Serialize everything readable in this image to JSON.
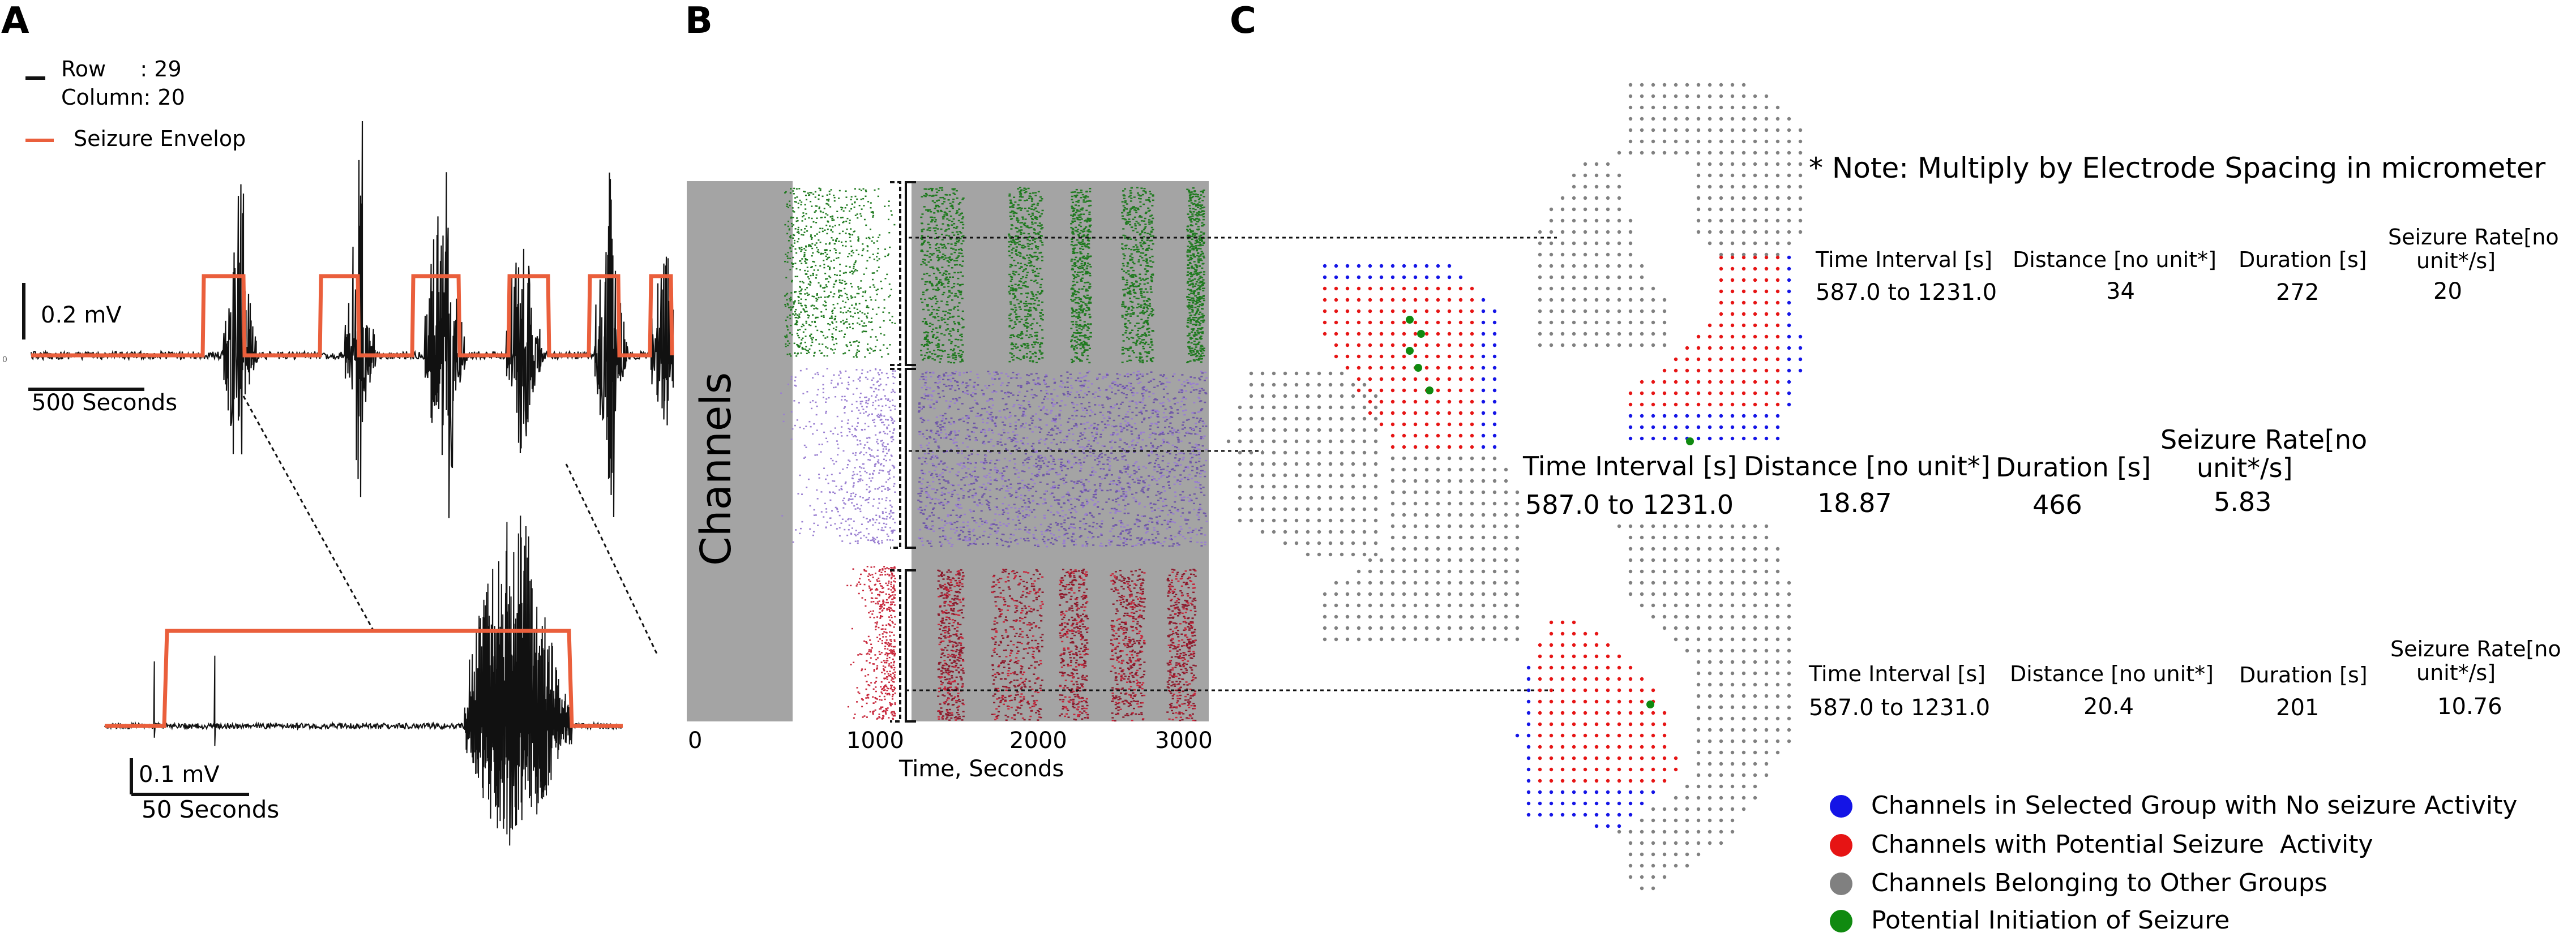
{
  "panels": {
    "a": "A",
    "b": "B",
    "c": "C"
  },
  "colors": {
    "trace": "#111111",
    "envelope": "#ea5f3c",
    "green": "#1f7a1f",
    "purple": "#9a7fd1",
    "red": "#c8283c",
    "raster_bg": "#a4a4a4",
    "dot_blue": "#1414e6",
    "dot_red": "#e61414",
    "dot_gray": "#808080",
    "dot_green": "#108a10"
  },
  "panel_a": {
    "legend_row_label": "Row     : 29",
    "legend_column_label": "Column: 20",
    "legend_envelope_label": "Seizure Envelop",
    "scale_top_voltage": "0.2 mV",
    "scale_top_time": "500 Seconds",
    "scale_bottom_voltage": "0.1 mV",
    "scale_bottom_time": "50 Seconds",
    "tiny_axis_mark": "0"
  },
  "panel_b": {
    "ylabel": "Channels",
    "xlabel": "Time, Seconds",
    "ticks": [
      "0",
      "1000",
      "2000",
      "3000"
    ]
  },
  "panel_c": {
    "note": "* Note: Multiply by Electrode Spacing in micrometer",
    "groups": [
      {
        "name": "upper",
        "time_header": "Time Interval [s]",
        "distance_header": "Distance [no unit*]",
        "duration_header": "Duration [s]",
        "rate_header_1": "Seizure Rate[no",
        "rate_header_2": "unit*/s]",
        "time_value": "587.0 to 1231.0",
        "distance_value": "34",
        "duration_value": "272",
        "rate_value": "20"
      },
      {
        "name": "middle",
        "time_header": "Time Interval [s]",
        "distance_header": "Distance [no unit*]",
        "duration_header": "Duration [s]",
        "rate_header_1": "Seizure Rate[no",
        "rate_header_2": "unit*/s]",
        "time_value": "587.0 to 1231.0",
        "distance_value": "18.87",
        "duration_value": "466",
        "rate_value": "5.83"
      },
      {
        "name": "lower",
        "time_header": "Time Interval [s]",
        "distance_header": "Distance [no unit*]",
        "duration_header": "Duration [s]",
        "rate_header_1": "Seizure Rate[no",
        "rate_header_2": "unit*/s]",
        "time_value": "587.0 to 1231.0",
        "distance_value": "20.4",
        "duration_value": "201",
        "rate_value": "10.76"
      }
    ],
    "legend": [
      {
        "label": "Channels in Selected Group with No seizure Activity",
        "color": "#1414e6"
      },
      {
        "label": "Channels with Potential Seizure  Activity",
        "color": "#e61414"
      },
      {
        "label": "Channels Belonging to Other Groups",
        "color": "#808080"
      },
      {
        "label": "Potential Initiation of Seizure",
        "color": "#108a10"
      }
    ]
  }
}
